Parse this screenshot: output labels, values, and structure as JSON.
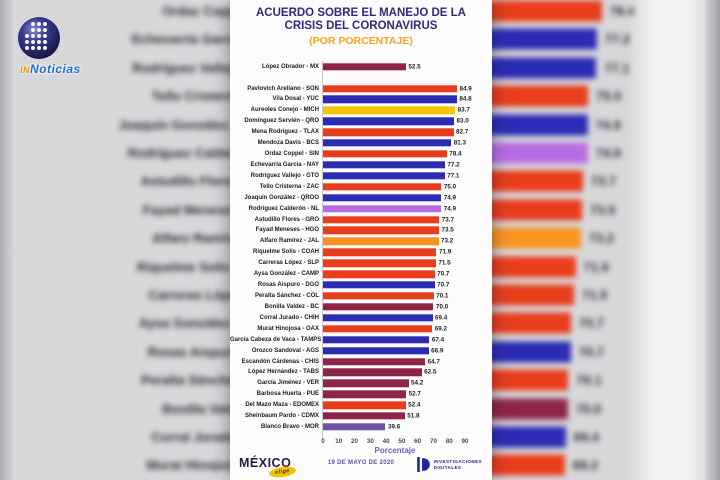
{
  "watermark": {
    "prefix": "IN",
    "name": "Noticias"
  },
  "chart_data": {
    "type": "bar",
    "orientation": "horizontal",
    "title_line1": "ACUERDO SOBRE EL MANEJO DE LA",
    "title_line2": "CRISIS DEL CORONAVIRUS",
    "subtitle": "(POR PORCENTAJE)",
    "xlabel": "Porcentaje",
    "xlim": [
      0,
      100
    ],
    "ticks": [
      0,
      10,
      20,
      30,
      40,
      50,
      60,
      70,
      80,
      90
    ],
    "grid": false,
    "legend": false,
    "rows": [
      {
        "label": "López Obrador - MX",
        "value": "52.5",
        "color": "maroon"
      },
      {
        "label": "Pavlovich Arellano - SON",
        "value": "84.9",
        "color": "red"
      },
      {
        "label": "Vila Dosal - YUC",
        "value": "84.8",
        "color": "blue"
      },
      {
        "label": "Aureoles Conejo - MICH",
        "value": "83.7",
        "color": "yellow"
      },
      {
        "label": "Domínguez Servién - QRO",
        "value": "83.0",
        "color": "blue"
      },
      {
        "label": "Mena Rodríguez - TLAX",
        "value": "82.7",
        "color": "red"
      },
      {
        "label": "Mendoza Davis - BCS",
        "value": "81.3",
        "color": "blue"
      },
      {
        "label": "Ordaz Coppel - SIN",
        "value": "78.4",
        "color": "red"
      },
      {
        "label": "Echevarría García - NAY",
        "value": "77.2",
        "color": "blue"
      },
      {
        "label": "Rodríguez Vallejo - GTO",
        "value": "77.1",
        "color": "blue"
      },
      {
        "label": "Tello Cristerna - ZAC",
        "value": "75.0",
        "color": "red"
      },
      {
        "label": "Joaquín González - QROO",
        "value": "74.9",
        "color": "blue"
      },
      {
        "label": "Rodríguez Calderón - NL",
        "value": "74.9",
        "color": "violet"
      },
      {
        "label": "Astudillo Flores - GRO",
        "value": "73.7",
        "color": "red"
      },
      {
        "label": "Fayad Meneses - HGO",
        "value": "73.5",
        "color": "red"
      },
      {
        "label": "Alfaro Ramírez - JAL",
        "value": "73.2",
        "color": "orange"
      },
      {
        "label": "Riquelme Solís - COAH",
        "value": "71.9",
        "color": "red"
      },
      {
        "label": "Carreras López - SLP",
        "value": "71.5",
        "color": "red"
      },
      {
        "label": "Aysa González - CAMP",
        "value": "70.7",
        "color": "red"
      },
      {
        "label": "Rosas Aispuro - DGO",
        "value": "70.7",
        "color": "blue"
      },
      {
        "label": "Peralta Sánchez - COL",
        "value": "70.1",
        "color": "red"
      },
      {
        "label": "Bonilla Valdez - BC",
        "value": "70.0",
        "color": "maroon"
      },
      {
        "label": "Corral Jurado - CHIH",
        "value": "69.4",
        "color": "blue"
      },
      {
        "label": "Murat Hinojosa - OAX",
        "value": "69.2",
        "color": "red"
      },
      {
        "label": "García Cabeza de Vaca - TAMPS",
        "value": "67.4",
        "color": "blue"
      },
      {
        "label": "Orozco Sandoval - AGS",
        "value": "66.9",
        "color": "blue"
      },
      {
        "label": "Escandón Cárdenas - CHIS",
        "value": "64.7",
        "color": "maroon"
      },
      {
        "label": "López Hernández - TABS",
        "value": "62.5",
        "color": "maroon"
      },
      {
        "label": "García Jiménez - VER",
        "value": "54.2",
        "color": "maroon"
      },
      {
        "label": "Barbosa Huerta - PUE",
        "value": "52.7",
        "color": "maroon"
      },
      {
        "label": "Del Mazo Maza - EDOMEX",
        "value": "52.4",
        "color": "red"
      },
      {
        "label": "Sheinbaum Pardo - CDMX",
        "value": "51.8",
        "color": "maroon"
      },
      {
        "label": "Blanco Bravo - MOR",
        "value": "39.6",
        "color": "purple"
      }
    ]
  },
  "colors": {
    "maroon": "#8E2448",
    "red": "#E83D1C",
    "blue": "#2B2BB4",
    "yellow": "#F7C40D",
    "orange": "#F79421",
    "violet": "#B76CE3",
    "purple": "#7050A8",
    "title": "#2F2A7E",
    "subtitle_accent": "#F7A41E"
  },
  "background_echo": {
    "start_index": 7,
    "visible_rows": 17
  },
  "footer": {
    "brand": "MÉXICO",
    "brand_badge": "elige",
    "date": "19 DE MAYO DE 2020",
    "org_line1": "INVESTIGACIONES",
    "org_line2": "DIGITALES"
  }
}
